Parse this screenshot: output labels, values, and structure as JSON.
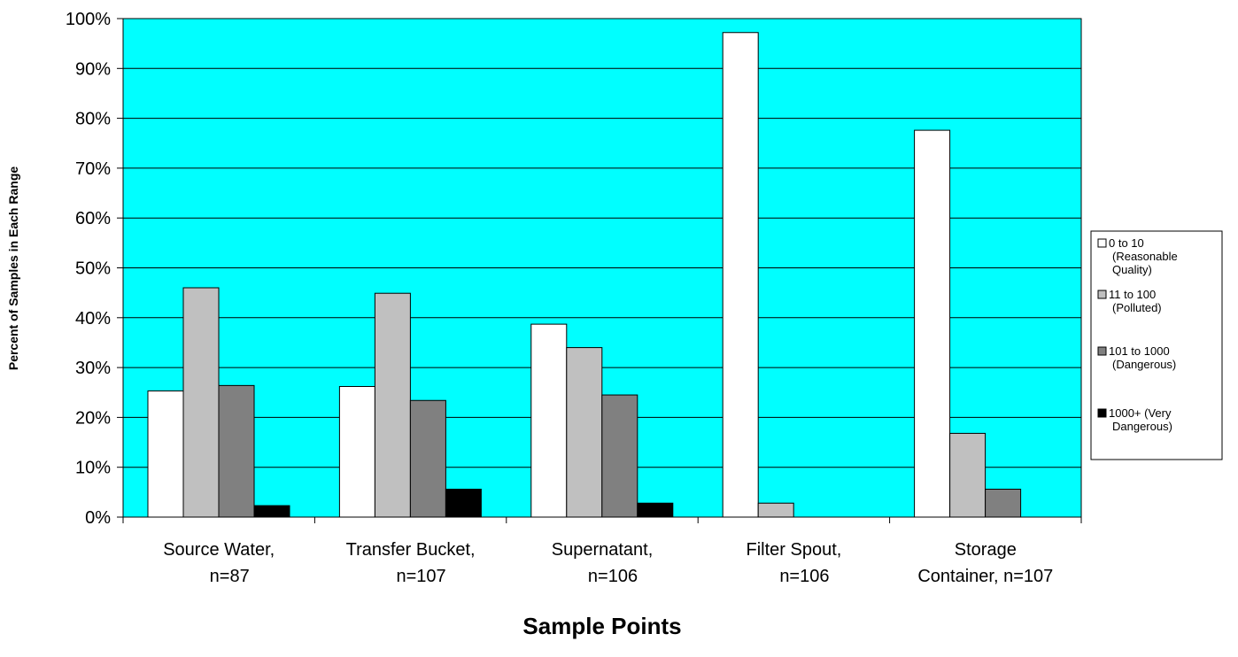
{
  "chart_data": {
    "type": "bar",
    "title": "",
    "xlabel": "Sample Points",
    "ylabel": "Percent of Samples in Each Range",
    "ylim": [
      0,
      100
    ],
    "y_ticks": [
      "0%",
      "10%",
      "20%",
      "30%",
      "40%",
      "50%",
      "60%",
      "70%",
      "80%",
      "90%",
      "100%"
    ],
    "categories": [
      [
        "Source Water,",
        "n=87"
      ],
      [
        "Transfer Bucket,",
        "n=107"
      ],
      [
        "Supernatant,",
        "n=106"
      ],
      [
        "Filter Spout,",
        "n=106"
      ],
      [
        "Storage",
        "Container,  n=107"
      ]
    ],
    "series": [
      {
        "name": [
          "0 to 10",
          "(Reasonable",
          "Quality)"
        ],
        "color": "#ffffff",
        "values": [
          25.3,
          26.2,
          38.7,
          97.2,
          77.6
        ]
      },
      {
        "name": [
          "11 to 100",
          "(Polluted)"
        ],
        "color": "#c0c0c0",
        "values": [
          46.0,
          44.9,
          34.0,
          2.8,
          16.8
        ]
      },
      {
        "name": [
          "101 to 1000",
          "(Dangerous)"
        ],
        "color": "#808080",
        "values": [
          26.4,
          23.4,
          24.5,
          0,
          5.6
        ]
      },
      {
        "name": [
          "1000+ (Very",
          "Dangerous)"
        ],
        "color": "#000000",
        "values": [
          2.3,
          5.6,
          2.8,
          0,
          0
        ]
      }
    ],
    "plot_background": "#00ffff",
    "grid": true,
    "legend_position": "right"
  }
}
